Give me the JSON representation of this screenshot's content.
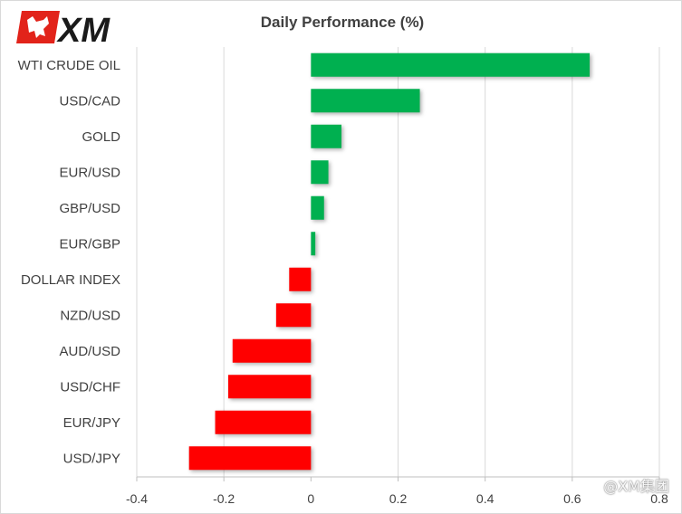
{
  "brand": {
    "logo_text": "XM",
    "logo_color": "#e2231a",
    "watermark": "@XM集团"
  },
  "chart_data": {
    "type": "bar",
    "orientation": "horizontal",
    "title": "Daily Performance  (%)",
    "xlabel": "",
    "ylabel": "",
    "categories": [
      "WTI CRUDE OIL",
      "USD/CAD",
      "GOLD",
      "EUR/USD",
      "GBP/USD",
      "EUR/GBP",
      "DOLLAR INDEX",
      "NZD/USD",
      "AUD/USD",
      "USD/CHF",
      "EUR/JPY",
      "USD/JPY"
    ],
    "values": [
      0.64,
      0.25,
      0.07,
      0.04,
      0.03,
      0.01,
      -0.05,
      -0.08,
      -0.18,
      -0.19,
      -0.22,
      -0.28
    ],
    "xlim": [
      -0.4,
      0.8
    ],
    "xticks": [
      -0.4,
      -0.2,
      0,
      0.2,
      0.4,
      0.6,
      0.8
    ],
    "xtick_labels": [
      "-0.4",
      "-0.2",
      "0",
      "0.2",
      "0.4",
      "0.6",
      "0.8"
    ],
    "positive_color": "#00b050",
    "negative_color": "#ff0000",
    "grid": "vertical",
    "legend": "none"
  }
}
